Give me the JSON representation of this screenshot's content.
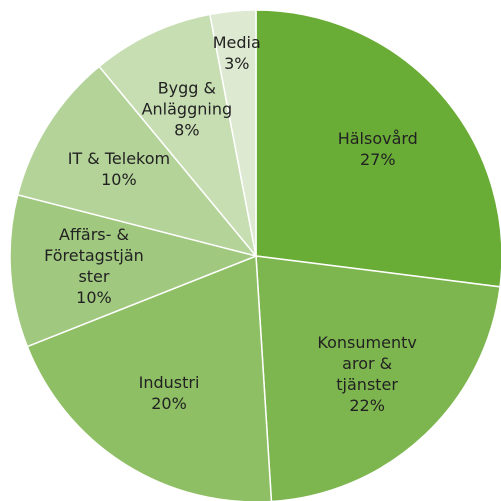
{
  "chart_data": {
    "type": "pie",
    "categories": [
      "Hälsovård",
      "Konsumentvaror & tjänster",
      "Industri",
      "Affärs- & Företagstjänster",
      "IT & Telekom",
      "Bygg & Anläggning",
      "Media"
    ],
    "values": [
      27,
      22,
      20,
      10,
      10,
      8,
      3
    ],
    "value_labels": [
      "27%",
      "22%",
      "20%",
      "10%",
      "10%",
      "8%",
      "3%"
    ],
    "colors": [
      "#6aad36",
      "#7db64f",
      "#8ebf64",
      "#a0c87f",
      "#b3d398",
      "#c7deb3",
      "#dde9d0"
    ]
  }
}
